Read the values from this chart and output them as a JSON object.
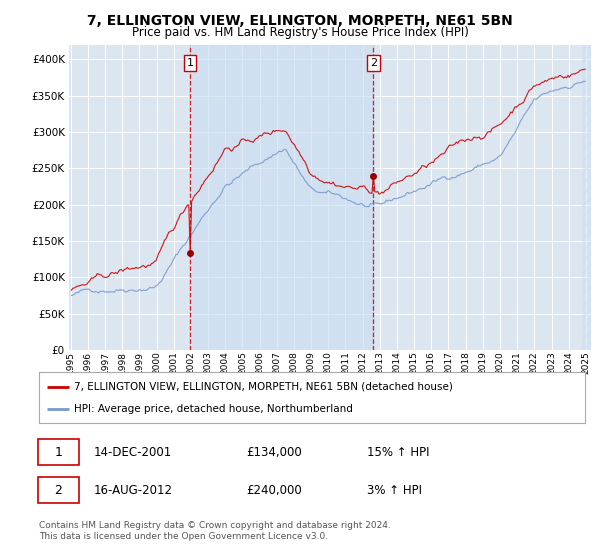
{
  "title": "7, ELLINGTON VIEW, ELLINGTON, MORPETH, NE61 5BN",
  "subtitle": "Price paid vs. HM Land Registry's House Price Index (HPI)",
  "legend_line1": "7, ELLINGTON VIEW, ELLINGTON, MORPETH, NE61 5BN (detached house)",
  "legend_line2": "HPI: Average price, detached house, Northumberland",
  "footnote1": "Contains HM Land Registry data © Crown copyright and database right 2024.",
  "footnote2": "This data is licensed under the Open Government Licence v3.0.",
  "annotation1_label": "1",
  "annotation1_date": "14-DEC-2001",
  "annotation1_price": "£134,000",
  "annotation1_hpi": "15% ↑ HPI",
  "annotation2_label": "2",
  "annotation2_date": "16-AUG-2012",
  "annotation2_price": "£240,000",
  "annotation2_hpi": "3% ↑ HPI",
  "price_line_color": "#cc0000",
  "hpi_line_color": "#7799cc",
  "vline_color": "#cc0000",
  "plot_bg_color": "#dce6f1",
  "shade_between_color": "#c8d8ee",
  "sale_marker_color": "#990000",
  "ylim": [
    0,
    420000
  ],
  "yticks": [
    0,
    50000,
    100000,
    150000,
    200000,
    250000,
    300000,
    350000,
    400000
  ],
  "sale1_year": 2001.958,
  "sale2_year": 2012.625,
  "sale1_price": 134000,
  "sale2_price": 240000,
  "xstart": 1995,
  "xend": 2025
}
